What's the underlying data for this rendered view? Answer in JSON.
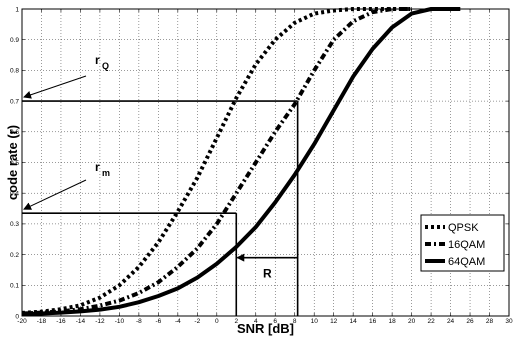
{
  "chart_data": {
    "type": "line",
    "title": "",
    "xlabel": "SNR [dB]",
    "ylabel": "code rate (r)",
    "xlim": [
      -20,
      30
    ],
    "ylim": [
      0,
      1
    ],
    "x_ticks": [
      -20,
      -18,
      -16,
      -14,
      -12,
      -10,
      -8,
      -6,
      -4,
      -2,
      0,
      2,
      4,
      6,
      8,
      10,
      12,
      14,
      16,
      18,
      20,
      22,
      24,
      26,
      28,
      30
    ],
    "y_ticks": [
      0,
      0.1,
      0.2,
      0.3,
      0.4,
      0.5,
      0.6,
      0.7,
      0.8,
      0.9,
      1
    ],
    "grid": true,
    "legend_position": "lower-right",
    "series": [
      {
        "name": "QPSK",
        "style": "dotted-thick",
        "x": [
          -20,
          -18,
          -16,
          -14,
          -12,
          -10,
          -8,
          -6,
          -4,
          -2,
          0,
          2,
          4,
          6,
          8,
          10,
          12,
          14,
          16,
          18,
          20
        ],
        "y": [
          0.01,
          0.014,
          0.022,
          0.035,
          0.06,
          0.1,
          0.16,
          0.24,
          0.34,
          0.45,
          0.58,
          0.71,
          0.82,
          0.9,
          0.955,
          0.985,
          0.995,
          1.0,
          1.0,
          1.0,
          1.0
        ]
      },
      {
        "name": "16QAM",
        "style": "dash-dot-thick",
        "x": [
          -20,
          -18,
          -16,
          -14,
          -12,
          -10,
          -8,
          -6,
          -4,
          -2,
          0,
          2,
          4,
          6,
          8,
          10,
          12,
          14,
          16,
          18,
          20
        ],
        "y": [
          0.008,
          0.011,
          0.015,
          0.022,
          0.034,
          0.05,
          0.075,
          0.11,
          0.16,
          0.22,
          0.3,
          0.4,
          0.5,
          0.6,
          0.69,
          0.8,
          0.9,
          0.96,
          0.99,
          1.0,
          1.0
        ]
      },
      {
        "name": "64QAM",
        "style": "solid-thick",
        "x": [
          -20,
          -18,
          -16,
          -14,
          -12,
          -10,
          -8,
          -6,
          -4,
          -2,
          0,
          2,
          4,
          6,
          8,
          10,
          12,
          14,
          16,
          18,
          20,
          22,
          24,
          25
        ],
        "y": [
          0.006,
          0.008,
          0.011,
          0.015,
          0.021,
          0.03,
          0.045,
          0.065,
          0.09,
          0.125,
          0.17,
          0.225,
          0.29,
          0.37,
          0.46,
          0.56,
          0.67,
          0.78,
          0.87,
          0.94,
          0.985,
          1.0,
          1.0,
          1.0
        ]
      }
    ],
    "annotations": {
      "rQ": {
        "label": "r",
        "subscript": "Q",
        "y": 0.7,
        "x_drop": 8.3
      },
      "rm": {
        "label": "r",
        "subscript": "m",
        "y": 0.335,
        "x_drop": 2
      },
      "R": {
        "label": "R",
        "y": 0.19,
        "x_from": 8.3,
        "x_to": 2
      }
    }
  }
}
